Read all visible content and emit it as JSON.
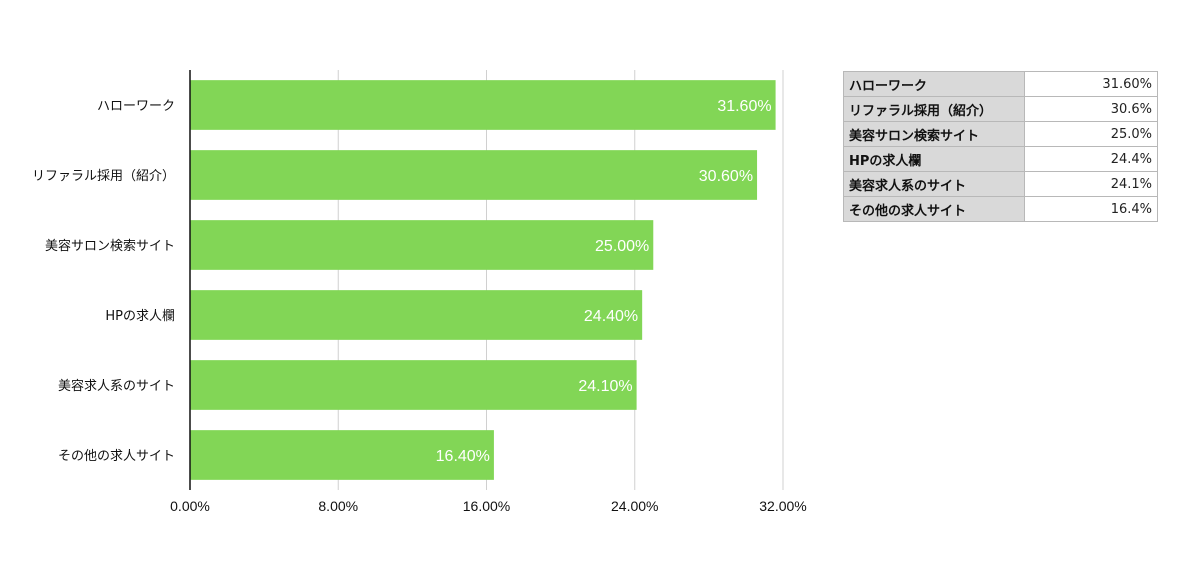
{
  "chart_data": {
    "type": "bar",
    "orientation": "horizontal",
    "categories": [
      "ハローワーク",
      "リファラル採用（紹介）",
      "美容サロン検索サイト",
      "HPの求人欄",
      "美容求人系のサイト",
      "その他の求人サイト"
    ],
    "values": [
      31.6,
      30.6,
      25.0,
      24.4,
      24.1,
      16.4
    ],
    "data_labels": [
      "31.60%",
      "30.60%",
      "25.00%",
      "24.40%",
      "24.10%",
      "16.40%"
    ],
    "xlim": [
      0,
      32
    ],
    "xticks": [
      0,
      8,
      16,
      24,
      32
    ],
    "xtick_labels": [
      "0.00%",
      "8.00%",
      "16.00%",
      "24.00%",
      "32.00%"
    ],
    "grid": true,
    "bar_color": "#82d656",
    "label_color": "#ffffff",
    "grid_color": "#d0d0d0",
    "axis_color": "#111111"
  },
  "table": {
    "rows": [
      {
        "label": "ハローワーク",
        "value": "31.60%"
      },
      {
        "label": "リファラル採用（紹介）",
        "value": "30.6%"
      },
      {
        "label": "美容サロン検索サイト",
        "value": "25.0%"
      },
      {
        "label": "HPの求人欄",
        "value": "24.4%"
      },
      {
        "label": "美容求人系のサイト",
        "value": "24.1%"
      },
      {
        "label": "その他の求人サイト",
        "value": "16.4%"
      }
    ]
  }
}
